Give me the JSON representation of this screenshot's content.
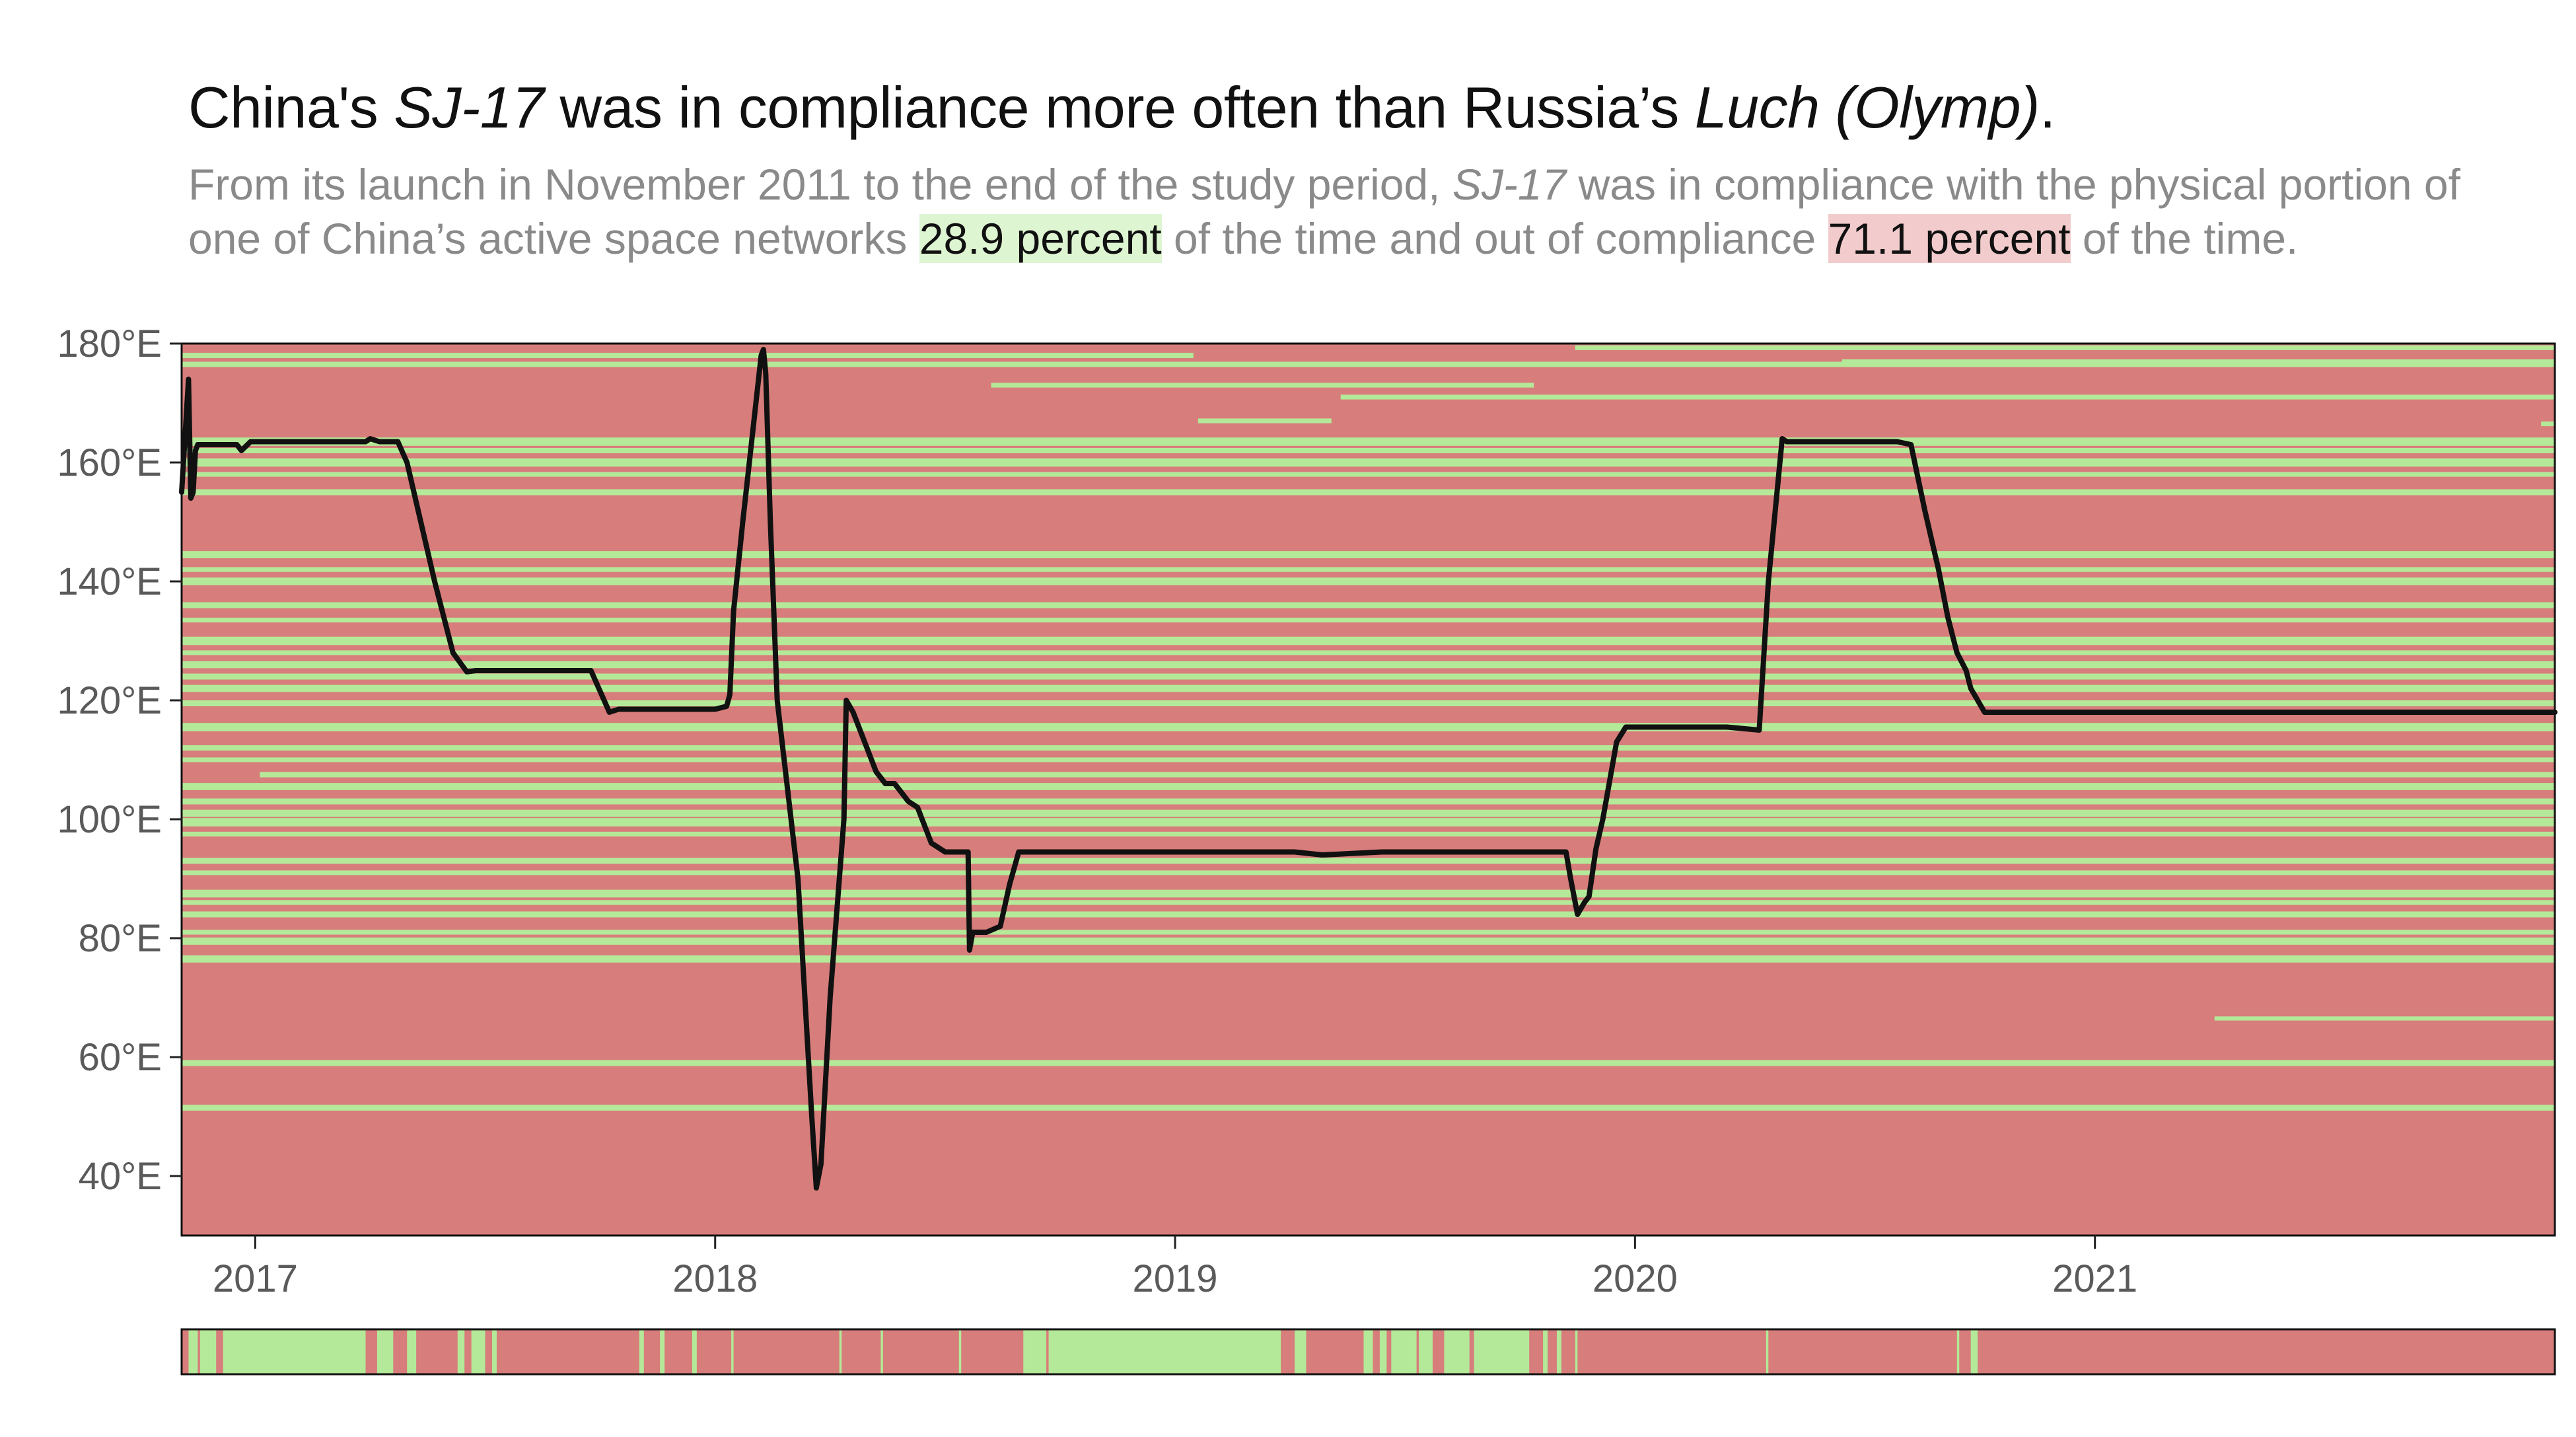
{
  "title": {
    "part1": "China's ",
    "sat": "SJ-17",
    "part2": " was in compliance more often than Russia’s ",
    "sat2": "Luch (Olymp)",
    "part3": "."
  },
  "subtitle": {
    "s1": "From its launch in November 2011 to the end of the study period, ",
    "sat": "SJ-17",
    "s2": " was in compliance with the physical portion of one of China’s active space networks ",
    "green_text": "28.9 percent",
    "s3": " of the time and out of compliance ",
    "red_text": "71.1 percent",
    "s4": " of the time."
  },
  "colors": {
    "in_compliance": "#b3e998",
    "out_of_compliance": "#d77d7b",
    "track": "#111111"
  },
  "chart_data": {
    "type": "line",
    "ylabel": "",
    "xlabel": "",
    "x_unit": "year",
    "xlim": [
      2016.84,
      2022.0
    ],
    "ylim": [
      30,
      180
    ],
    "x_ticks": [
      2017,
      2018,
      2019,
      2020,
      2021
    ],
    "x_tick_labels": [
      "2017",
      "2018",
      "2019",
      "2020",
      "2021"
    ],
    "y_ticks": [
      40,
      60,
      80,
      100,
      120,
      140,
      160,
      180
    ],
    "y_tick_labels": [
      "40°E",
      "60°E",
      "80°E",
      "100°E",
      "120°E",
      "140°E",
      "160°E",
      "180°E"
    ],
    "series": [
      {
        "x": [
          2016.84,
          2016.855,
          2016.86,
          2016.865,
          2016.87,
          2016.875,
          2016.89,
          2016.93,
          2016.96,
          2016.97,
          2016.99,
          2017.1,
          2017.24,
          2017.25,
          2017.27,
          2017.31,
          2017.33,
          2017.36,
          2017.39,
          2017.43,
          2017.46,
          2017.48,
          2017.49,
          2017.52,
          2017.6,
          2017.7,
          2017.73,
          2017.77,
          2017.79,
          2017.81,
          2017.88,
          2018.0,
          2018.025,
          2018.032,
          2018.04,
          2018.06,
          2018.1,
          2018.105,
          2018.11,
          2018.12,
          2018.135,
          2018.18,
          2018.21,
          2018.22,
          2018.23,
          2018.25,
          2018.28,
          2018.285,
          2018.3,
          2018.33,
          2018.35,
          2018.37,
          2018.39,
          2018.4,
          2018.42,
          2018.44,
          2018.47,
          2018.5,
          2018.52,
          2018.53,
          2018.55,
          2018.553,
          2018.56,
          2018.59,
          2018.62,
          2018.64,
          2018.66,
          2018.67,
          2018.7,
          2018.9,
          2019.1,
          2019.23,
          2019.26,
          2019.32,
          2019.45,
          2019.6,
          2019.75,
          2019.85,
          2019.86,
          2019.875,
          2019.89,
          2019.9,
          2019.915,
          2019.93,
          2019.96,
          2019.98,
          2020.0,
          2020.1,
          2020.2,
          2020.27,
          2020.29,
          2020.32,
          2020.33,
          2020.4,
          2020.5,
          2020.57,
          2020.6,
          2020.63,
          2020.66,
          2020.68,
          2020.7,
          2020.72,
          2020.73,
          2020.76,
          2020.8,
          2021.0,
          2021.3,
          2021.6,
          2021.8,
          2022.0
        ],
        "y": [
          155,
          174,
          154,
          155,
          162,
          163,
          163,
          163,
          163,
          162,
          163.5,
          163.5,
          163.5,
          164,
          163.5,
          163.5,
          160,
          150,
          140,
          128,
          124.8,
          125,
          125,
          125,
          125,
          125,
          125,
          118,
          118.5,
          118.5,
          118.5,
          118.5,
          119,
          121,
          135,
          150,
          178,
          179,
          175,
          150,
          120,
          90,
          50,
          38,
          42,
          70,
          100,
          120,
          118,
          112,
          108,
          106,
          106,
          105,
          103,
          102,
          96,
          94.5,
          94.5,
          94.5,
          94.5,
          78,
          81,
          81,
          82,
          89,
          94.5,
          94.5,
          94.5,
          94.5,
          94.5,
          94.5,
          94.5,
          94,
          94.5,
          94.5,
          94.5,
          94.5,
          90,
          84,
          86,
          87,
          95,
          100,
          113,
          115.5,
          115.5,
          115.5,
          115.5,
          115,
          140,
          164,
          163.5,
          163.5,
          163.5,
          163.5,
          163,
          152,
          142,
          134,
          128,
          125,
          122,
          118,
          118,
          118,
          118,
          118,
          118,
          118
        ]
      }
    ],
    "compliance_bands": [
      {
        "lon": 178.0,
        "x0": 2016.84,
        "x1": 2019.04,
        "width": 0.9,
        "color": "green"
      },
      {
        "lon": 176.5,
        "x0": 2016.84,
        "x1": 2022.0,
        "width": 0.9,
        "color": "green"
      },
      {
        "lon": 179.3,
        "x0": 2019.87,
        "x1": 2022.0,
        "width": 0.8,
        "color": "green"
      },
      {
        "lon": 177.0,
        "x0": 2020.45,
        "x1": 2022.0,
        "width": 0.7,
        "color": "green"
      },
      {
        "lon": 173.0,
        "x0": 2018.6,
        "x1": 2019.78,
        "width": 0.8,
        "color": "green"
      },
      {
        "lon": 171.0,
        "x0": 2019.36,
        "x1": 2022.0,
        "width": 0.8,
        "color": "green"
      },
      {
        "lon": 167.0,
        "x0": 2019.05,
        "x1": 2019.34,
        "width": 0.8,
        "color": "green"
      },
      {
        "lon": 166.5,
        "x0": 2021.97,
        "x1": 2022.0,
        "width": 0.8,
        "color": "green"
      },
      {
        "lon": 163.5,
        "x0": 2016.84,
        "x1": 2022.0,
        "width": 1.4,
        "color": "green"
      },
      {
        "lon": 162.0,
        "x0": 2016.84,
        "x1": 2022.0,
        "width": 0.9,
        "color": "green"
      },
      {
        "lon": 160.0,
        "x0": 2016.84,
        "x1": 2022.0,
        "width": 1.4,
        "color": "green"
      },
      {
        "lon": 158.0,
        "x0": 2016.84,
        "x1": 2022.0,
        "width": 0.8,
        "color": "green"
      },
      {
        "lon": 155.0,
        "x0": 2016.84,
        "x1": 2022.0,
        "width": 1.0,
        "color": "green"
      },
      {
        "lon": 144.5,
        "x0": 2016.84,
        "x1": 2022.0,
        "width": 1.2,
        "color": "green"
      },
      {
        "lon": 142.0,
        "x0": 2016.84,
        "x1": 2022.0,
        "width": 0.8,
        "color": "green"
      },
      {
        "lon": 140.0,
        "x0": 2016.84,
        "x1": 2022.0,
        "width": 1.3,
        "color": "green"
      },
      {
        "lon": 136.0,
        "x0": 2016.84,
        "x1": 2022.0,
        "width": 1.0,
        "color": "green"
      },
      {
        "lon": 133.5,
        "x0": 2016.84,
        "x1": 2022.0,
        "width": 0.8,
        "color": "green"
      },
      {
        "lon": 130.0,
        "x0": 2016.84,
        "x1": 2022.0,
        "width": 1.4,
        "color": "green"
      },
      {
        "lon": 128.0,
        "x0": 2016.84,
        "x1": 2022.0,
        "width": 0.8,
        "color": "green"
      },
      {
        "lon": 126.0,
        "x0": 2016.84,
        "x1": 2022.0,
        "width": 1.2,
        "color": "green"
      },
      {
        "lon": 124.0,
        "x0": 2016.84,
        "x1": 2022.0,
        "width": 1.0,
        "color": "green"
      },
      {
        "lon": 122.0,
        "x0": 2016.84,
        "x1": 2022.0,
        "width": 1.2,
        "color": "green"
      },
      {
        "lon": 119.5,
        "x0": 2016.84,
        "x1": 2022.0,
        "width": 1.0,
        "color": "green"
      },
      {
        "lon": 115.5,
        "x0": 2016.84,
        "x1": 2022.0,
        "width": 1.4,
        "color": "green"
      },
      {
        "lon": 112.0,
        "x0": 2016.84,
        "x1": 2022.0,
        "width": 0.9,
        "color": "green"
      },
      {
        "lon": 110.0,
        "x0": 2016.84,
        "x1": 2022.0,
        "width": 0.8,
        "color": "green"
      },
      {
        "lon": 107.5,
        "x0": 2017.01,
        "x1": 2022.0,
        "width": 0.9,
        "color": "green"
      },
      {
        "lon": 105.5,
        "x0": 2016.84,
        "x1": 2022.0,
        "width": 1.2,
        "color": "green"
      },
      {
        "lon": 103.0,
        "x0": 2016.84,
        "x1": 2022.0,
        "width": 1.0,
        "color": "green"
      },
      {
        "lon": 101.0,
        "x0": 2016.84,
        "x1": 2022.0,
        "width": 1.2,
        "color": "green"
      },
      {
        "lon": 99.5,
        "x0": 2016.84,
        "x1": 2022.0,
        "width": 1.4,
        "color": "green"
      },
      {
        "lon": 97.5,
        "x0": 2016.84,
        "x1": 2022.0,
        "width": 0.8,
        "color": "green"
      },
      {
        "lon": 93.0,
        "x0": 2016.84,
        "x1": 2022.0,
        "width": 1.0,
        "color": "green"
      },
      {
        "lon": 91.0,
        "x0": 2016.84,
        "x1": 2022.0,
        "width": 0.8,
        "color": "green"
      },
      {
        "lon": 87.5,
        "x0": 2016.84,
        "x1": 2022.0,
        "width": 1.3,
        "color": "green"
      },
      {
        "lon": 86.0,
        "x0": 2016.84,
        "x1": 2022.0,
        "width": 0.8,
        "color": "green"
      },
      {
        "lon": 84.0,
        "x0": 2016.84,
        "x1": 2022.0,
        "width": 1.0,
        "color": "green"
      },
      {
        "lon": 81.0,
        "x0": 2016.84,
        "x1": 2022.0,
        "width": 0.8,
        "color": "green"
      },
      {
        "lon": 79.5,
        "x0": 2016.84,
        "x1": 2022.0,
        "width": 1.2,
        "color": "green"
      },
      {
        "lon": 76.5,
        "x0": 2016.84,
        "x1": 2022.0,
        "width": 1.2,
        "color": "green"
      },
      {
        "lon": 66.5,
        "x0": 2021.26,
        "x1": 2022.0,
        "width": 0.7,
        "color": "green"
      },
      {
        "lon": 59.0,
        "x0": 2016.84,
        "x1": 2022.0,
        "width": 1.0,
        "color": "green"
      },
      {
        "lon": 51.5,
        "x0": 2016.84,
        "x1": 2022.0,
        "width": 1.0,
        "color": "green"
      }
    ],
    "compliance_timeline": {
      "green_intervals": [
        [
          2016.855,
          2016.875
        ],
        [
          2016.88,
          2016.915
        ],
        [
          2016.93,
          2017.24
        ],
        [
          2017.265,
          2017.3
        ],
        [
          2017.33,
          2017.35
        ],
        [
          2017.44,
          2017.455
        ],
        [
          2017.47,
          2017.5
        ],
        [
          2017.515,
          2017.525
        ],
        [
          2017.835,
          2017.845
        ],
        [
          2017.88,
          2017.89
        ],
        [
          2017.95,
          2017.96
        ],
        [
          2018.035,
          2018.04
        ],
        [
          2018.27,
          2018.275
        ],
        [
          2018.36,
          2018.365
        ],
        [
          2018.53,
          2018.535
        ],
        [
          2018.67,
          2018.72
        ],
        [
          2018.725,
          2019.23
        ],
        [
          2019.26,
          2019.285
        ],
        [
          2019.41,
          2019.43
        ],
        [
          2019.445,
          2019.46
        ],
        [
          2019.47,
          2019.525
        ],
        [
          2019.53,
          2019.56
        ],
        [
          2019.585,
          2019.64
        ],
        [
          2019.65,
          2019.77
        ],
        [
          2019.8,
          2019.81
        ],
        [
          2019.83,
          2019.84
        ],
        [
          2019.87,
          2019.875
        ],
        [
          2020.285,
          2020.29
        ],
        [
          2020.7,
          2020.705
        ],
        [
          2020.73,
          2020.745
        ]
      ]
    }
  }
}
